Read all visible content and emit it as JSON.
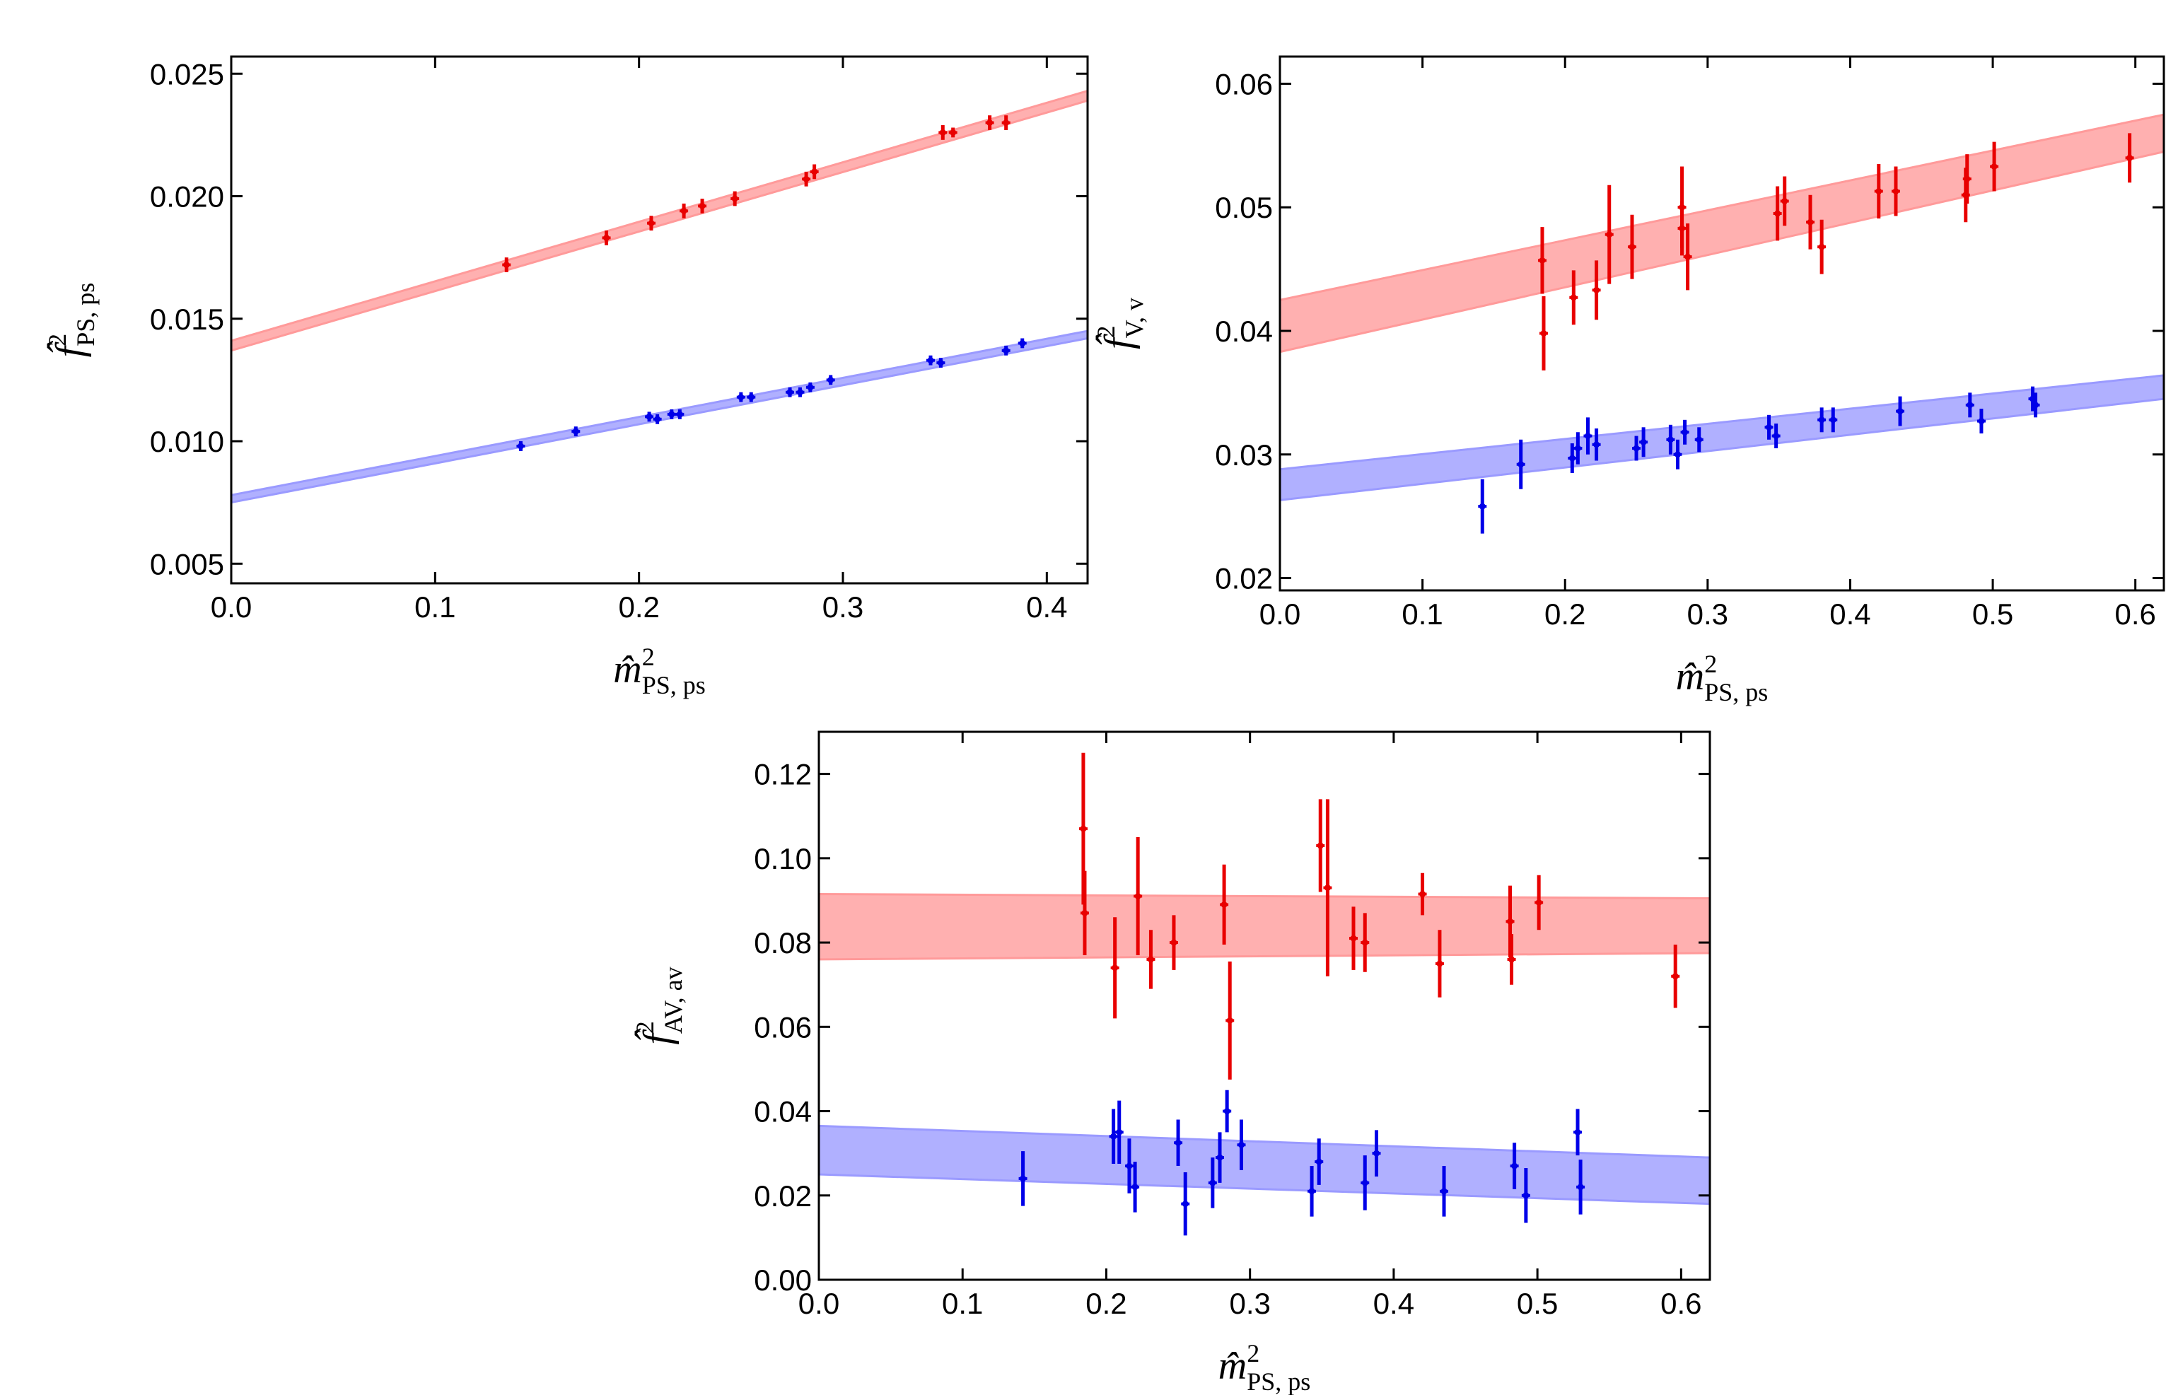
{
  "chart_data": [
    {
      "type": "scatter",
      "title": "",
      "xlabel": {
        "base": "m̂",
        "sup": "2",
        "sub": "PS, ps"
      },
      "ylabel": {
        "base": "f̂",
        "sup": "2",
        "sub": "PS, ps"
      },
      "xlim": [
        0.0,
        0.42
      ],
      "ylim": [
        0.0042,
        0.0257
      ],
      "xticks": [
        "0.0",
        "0.1",
        "0.2",
        "0.3",
        "0.4"
      ],
      "xtick_values": [
        0.0,
        0.1,
        0.2,
        0.3,
        0.4
      ],
      "yticks": [
        "0.005",
        "0.010",
        "0.015",
        "0.020",
        "0.025"
      ],
      "ytick_values": [
        0.005,
        0.01,
        0.015,
        0.02,
        0.025
      ],
      "series": [
        {
          "name": "red",
          "color": "#e80000",
          "band_color": "#ff9a9a",
          "band": {
            "x": [
              0.0,
              0.42
            ],
            "upper": [
              0.0141,
              0.0243
            ],
            "lower": [
              0.0137,
              0.0239
            ]
          },
          "points": [
            {
              "x": 0.135,
              "y": 0.0172,
              "err": 0.0003
            },
            {
              "x": 0.184,
              "y": 0.0183,
              "err": 0.0003
            },
            {
              "x": 0.206,
              "y": 0.0189,
              "err": 0.0003
            },
            {
              "x": 0.222,
              "y": 0.0194,
              "err": 0.0003
            },
            {
              "x": 0.231,
              "y": 0.0196,
              "err": 0.0003
            },
            {
              "x": 0.247,
              "y": 0.0199,
              "err": 0.0003
            },
            {
              "x": 0.282,
              "y": 0.0207,
              "err": 0.0003
            },
            {
              "x": 0.286,
              "y": 0.021,
              "err": 0.0003
            },
            {
              "x": 0.349,
              "y": 0.0226,
              "err": 0.0003
            },
            {
              "x": 0.354,
              "y": 0.0226,
              "err": 0.0002
            },
            {
              "x": 0.372,
              "y": 0.023,
              "err": 0.0003
            },
            {
              "x": 0.38,
              "y": 0.023,
              "err": 0.0003
            }
          ]
        },
        {
          "name": "blue",
          "color": "#0000e8",
          "band_color": "#9a9aff",
          "band": {
            "x": [
              0.0,
              0.42
            ],
            "upper": [
              0.0078,
              0.0145
            ],
            "lower": [
              0.0075,
              0.0142
            ]
          },
          "points": [
            {
              "x": 0.142,
              "y": 0.0098,
              "err": 0.0002
            },
            {
              "x": 0.169,
              "y": 0.0104,
              "err": 0.0002
            },
            {
              "x": 0.205,
              "y": 0.011,
              "err": 0.0002
            },
            {
              "x": 0.209,
              "y": 0.0109,
              "err": 0.0002
            },
            {
              "x": 0.216,
              "y": 0.0111,
              "err": 0.0002
            },
            {
              "x": 0.22,
              "y": 0.0111,
              "err": 0.0002
            },
            {
              "x": 0.25,
              "y": 0.0118,
              "err": 0.0002
            },
            {
              "x": 0.255,
              "y": 0.0118,
              "err": 0.0002
            },
            {
              "x": 0.274,
              "y": 0.012,
              "err": 0.0002
            },
            {
              "x": 0.279,
              "y": 0.012,
              "err": 0.0002
            },
            {
              "x": 0.284,
              "y": 0.0122,
              "err": 0.0002
            },
            {
              "x": 0.294,
              "y": 0.0125,
              "err": 0.0002
            },
            {
              "x": 0.343,
              "y": 0.0133,
              "err": 0.0002
            },
            {
              "x": 0.348,
              "y": 0.0132,
              "err": 0.0002
            },
            {
              "x": 0.38,
              "y": 0.0137,
              "err": 0.0002
            },
            {
              "x": 0.388,
              "y": 0.014,
              "err": 0.0002
            }
          ]
        }
      ]
    },
    {
      "type": "scatter",
      "title": "",
      "xlabel": {
        "base": "m̂",
        "sup": "2",
        "sub": "PS, ps"
      },
      "ylabel": {
        "base": "f̂",
        "sup": "2",
        "sub": "V, v"
      },
      "xlim": [
        0.0,
        0.62
      ],
      "ylim": [
        0.019,
        0.0622
      ],
      "xticks": [
        "0.0",
        "0.1",
        "0.2",
        "0.3",
        "0.4",
        "0.5",
        "0.6"
      ],
      "xtick_values": [
        0.0,
        0.1,
        0.2,
        0.3,
        0.4,
        0.5,
        0.6
      ],
      "yticks": [
        "0.02",
        "0.03",
        "0.04",
        "0.05",
        "0.06"
      ],
      "ytick_values": [
        0.02,
        0.03,
        0.04,
        0.05,
        0.06
      ],
      "series": [
        {
          "name": "red",
          "color": "#e80000",
          "band_color": "#ff9a9a",
          "band": {
            "x": [
              0.0,
              0.62
            ],
            "upper": [
              0.0425,
              0.0575
            ],
            "lower": [
              0.0383,
              0.0545
            ]
          },
          "points": [
            {
              "x": 0.184,
              "y": 0.0457,
              "err": 0.0027
            },
            {
              "x": 0.185,
              "y": 0.0398,
              "err": 0.003
            },
            {
              "x": 0.206,
              "y": 0.0427,
              "err": 0.0022
            },
            {
              "x": 0.222,
              "y": 0.0433,
              "err": 0.0024
            },
            {
              "x": 0.231,
              "y": 0.0478,
              "err": 0.004
            },
            {
              "x": 0.247,
              "y": 0.0468,
              "err": 0.0026
            },
            {
              "x": 0.282,
              "y": 0.05,
              "err": 0.0033
            },
            {
              "x": 0.282,
              "y": 0.0483,
              "err": 0.0022
            },
            {
              "x": 0.286,
              "y": 0.046,
              "err": 0.0027
            },
            {
              "x": 0.349,
              "y": 0.0495,
              "err": 0.0022
            },
            {
              "x": 0.354,
              "y": 0.0505,
              "err": 0.002
            },
            {
              "x": 0.372,
              "y": 0.0488,
              "err": 0.0022
            },
            {
              "x": 0.38,
              "y": 0.0468,
              "err": 0.0022
            },
            {
              "x": 0.42,
              "y": 0.0513,
              "err": 0.0022
            },
            {
              "x": 0.432,
              "y": 0.0513,
              "err": 0.002
            },
            {
              "x": 0.481,
              "y": 0.051,
              "err": 0.0022
            },
            {
              "x": 0.482,
              "y": 0.0523,
              "err": 0.002
            },
            {
              "x": 0.501,
              "y": 0.0533,
              "err": 0.002
            },
            {
              "x": 0.596,
              "y": 0.054,
              "err": 0.002
            }
          ]
        },
        {
          "name": "blue",
          "color": "#0000e8",
          "band_color": "#9a9aff",
          "band": {
            "x": [
              0.0,
              0.62
            ],
            "upper": [
              0.0288,
              0.0364
            ],
            "lower": [
              0.0263,
              0.0345
            ]
          },
          "points": [
            {
              "x": 0.142,
              "y": 0.0258,
              "err": 0.0022
            },
            {
              "x": 0.169,
              "y": 0.0292,
              "err": 0.002
            },
            {
              "x": 0.205,
              "y": 0.0297,
              "err": 0.0012
            },
            {
              "x": 0.209,
              "y": 0.0305,
              "err": 0.0013
            },
            {
              "x": 0.216,
              "y": 0.0315,
              "err": 0.0015
            },
            {
              "x": 0.222,
              "y": 0.0308,
              "err": 0.0013
            },
            {
              "x": 0.25,
              "y": 0.0305,
              "err": 0.001
            },
            {
              "x": 0.255,
              "y": 0.031,
              "err": 0.0012
            },
            {
              "x": 0.274,
              "y": 0.0312,
              "err": 0.0012
            },
            {
              "x": 0.279,
              "y": 0.03,
              "err": 0.0012
            },
            {
              "x": 0.284,
              "y": 0.0318,
              "err": 0.001
            },
            {
              "x": 0.294,
              "y": 0.0312,
              "err": 0.001
            },
            {
              "x": 0.343,
              "y": 0.0322,
              "err": 0.001
            },
            {
              "x": 0.348,
              "y": 0.0315,
              "err": 0.001
            },
            {
              "x": 0.38,
              "y": 0.0328,
              "err": 0.001
            },
            {
              "x": 0.388,
              "y": 0.0328,
              "err": 0.001
            },
            {
              "x": 0.435,
              "y": 0.0335,
              "err": 0.0012
            },
            {
              "x": 0.484,
              "y": 0.034,
              "err": 0.001
            },
            {
              "x": 0.492,
              "y": 0.0327,
              "err": 0.001
            },
            {
              "x": 0.528,
              "y": 0.0345,
              "err": 0.001
            },
            {
              "x": 0.53,
              "y": 0.034,
              "err": 0.001
            }
          ]
        }
      ]
    },
    {
      "type": "scatter",
      "title": "",
      "xlabel": {
        "base": "m̂",
        "sup": "2",
        "sub": "PS, ps"
      },
      "ylabel": {
        "base": "f̂",
        "sup": "2",
        "sub": "AV, av"
      },
      "xlim": [
        0.0,
        0.62
      ],
      "ylim": [
        0.0,
        0.13
      ],
      "xticks": [
        "0.0",
        "0.1",
        "0.2",
        "0.3",
        "0.4",
        "0.5",
        "0.6"
      ],
      "xtick_values": [
        0.0,
        0.1,
        0.2,
        0.3,
        0.4,
        0.5,
        0.6
      ],
      "yticks": [
        "0.00",
        "0.02",
        "0.04",
        "0.06",
        "0.08",
        "0.10",
        "0.12"
      ],
      "ytick_values": [
        0.0,
        0.02,
        0.04,
        0.06,
        0.08,
        0.1,
        0.12
      ],
      "series": [
        {
          "name": "red",
          "color": "#e80000",
          "band_color": "#ff9a9a",
          "band": {
            "x": [
              0.0,
              0.62
            ],
            "upper": [
              0.0915,
              0.0905
            ],
            "lower": [
              0.076,
              0.0775
            ]
          },
          "points": [
            {
              "x": 0.184,
              "y": 0.107,
              "err": 0.018
            },
            {
              "x": 0.185,
              "y": 0.087,
              "err": 0.01
            },
            {
              "x": 0.206,
              "y": 0.074,
              "err": 0.012
            },
            {
              "x": 0.222,
              "y": 0.091,
              "err": 0.014
            },
            {
              "x": 0.231,
              "y": 0.076,
              "err": 0.007
            },
            {
              "x": 0.247,
              "y": 0.08,
              "err": 0.0065
            },
            {
              "x": 0.282,
              "y": 0.089,
              "err": 0.0095
            },
            {
              "x": 0.286,
              "y": 0.0615,
              "err": 0.014
            },
            {
              "x": 0.349,
              "y": 0.103,
              "err": 0.011
            },
            {
              "x": 0.354,
              "y": 0.093,
              "err": 0.021
            },
            {
              "x": 0.372,
              "y": 0.081,
              "err": 0.0075
            },
            {
              "x": 0.38,
              "y": 0.08,
              "err": 0.007
            },
            {
              "x": 0.42,
              "y": 0.0915,
              "err": 0.005
            },
            {
              "x": 0.432,
              "y": 0.075,
              "err": 0.008
            },
            {
              "x": 0.481,
              "y": 0.085,
              "err": 0.0085
            },
            {
              "x": 0.482,
              "y": 0.076,
              "err": 0.006
            },
            {
              "x": 0.501,
              "y": 0.0895,
              "err": 0.0065
            },
            {
              "x": 0.596,
              "y": 0.072,
              "err": 0.0075
            }
          ]
        },
        {
          "name": "blue",
          "color": "#0000e8",
          "band_color": "#9a9aff",
          "band": {
            "x": [
              0.0,
              0.62
            ],
            "upper": [
              0.0365,
              0.029
            ],
            "lower": [
              0.025,
              0.018
            ]
          },
          "points": [
            {
              "x": 0.142,
              "y": 0.024,
              "err": 0.0065
            },
            {
              "x": 0.205,
              "y": 0.034,
              "err": 0.0065
            },
            {
              "x": 0.209,
              "y": 0.035,
              "err": 0.0075
            },
            {
              "x": 0.216,
              "y": 0.027,
              "err": 0.0065
            },
            {
              "x": 0.22,
              "y": 0.022,
              "err": 0.006
            },
            {
              "x": 0.25,
              "y": 0.0325,
              "err": 0.0055
            },
            {
              "x": 0.255,
              "y": 0.018,
              "err": 0.0075
            },
            {
              "x": 0.274,
              "y": 0.023,
              "err": 0.006
            },
            {
              "x": 0.279,
              "y": 0.029,
              "err": 0.006
            },
            {
              "x": 0.284,
              "y": 0.04,
              "err": 0.005
            },
            {
              "x": 0.294,
              "y": 0.032,
              "err": 0.006
            },
            {
              "x": 0.343,
              "y": 0.021,
              "err": 0.006
            },
            {
              "x": 0.348,
              "y": 0.028,
              "err": 0.0055
            },
            {
              "x": 0.38,
              "y": 0.023,
              "err": 0.0065
            },
            {
              "x": 0.388,
              "y": 0.03,
              "err": 0.0055
            },
            {
              "x": 0.435,
              "y": 0.021,
              "err": 0.006
            },
            {
              "x": 0.484,
              "y": 0.027,
              "err": 0.0055
            },
            {
              "x": 0.492,
              "y": 0.02,
              "err": 0.0065
            },
            {
              "x": 0.528,
              "y": 0.035,
              "err": 0.0055
            },
            {
              "x": 0.53,
              "y": 0.022,
              "err": 0.0065
            }
          ]
        }
      ]
    }
  ]
}
